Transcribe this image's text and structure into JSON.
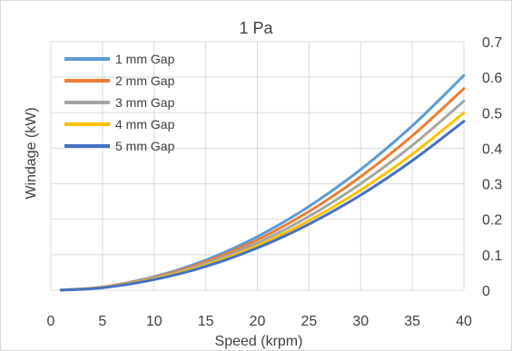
{
  "chart_data": {
    "type": "line",
    "title": "1 Pa",
    "xlabel": "Speed (krpm)",
    "ylabel": "Windage (kW)",
    "xlim": [
      0,
      40
    ],
    "ylim": [
      0,
      0.7
    ],
    "x_ticks": [
      0,
      5,
      10,
      15,
      20,
      25,
      30,
      35,
      40
    ],
    "y_ticks": [
      0,
      0.1,
      0.2,
      0.3,
      0.4,
      0.5,
      0.6,
      0.7
    ],
    "y_axis_side": "right",
    "grid": true,
    "legend_position": "top-left",
    "x": [
      1,
      5,
      10,
      15,
      20,
      25,
      30,
      35,
      40
    ],
    "series": [
      {
        "name": "1 mm Gap",
        "color": "#5b9bd5",
        "values": [
          0.0004,
          0.009,
          0.038,
          0.085,
          0.151,
          0.236,
          0.34,
          0.463,
          0.605
        ]
      },
      {
        "name": "2 mm Gap",
        "color": "#ed7d31",
        "values": [
          0.0004,
          0.009,
          0.036,
          0.08,
          0.142,
          0.222,
          0.32,
          0.435,
          0.568
        ]
      },
      {
        "name": "3 mm Gap",
        "color": "#a5a5a5",
        "values": [
          0.0004,
          0.008,
          0.034,
          0.075,
          0.133,
          0.208,
          0.3,
          0.408,
          0.533
        ]
      },
      {
        "name": "4 mm Gap",
        "color": "#ffc000",
        "values": [
          0.0003,
          0.008,
          0.032,
          0.07,
          0.125,
          0.196,
          0.282,
          0.383,
          0.5
        ]
      },
      {
        "name": "5 mm Gap",
        "color": "#4472c4",
        "values": [
          0.0003,
          0.007,
          0.03,
          0.067,
          0.119,
          0.186,
          0.268,
          0.365,
          0.476
        ]
      }
    ],
    "x_tick_labels": [
      "0",
      "5",
      "10",
      "15",
      "20",
      "25",
      "30",
      "35",
      "40"
    ],
    "y_tick_labels": [
      "0",
      "0.1",
      "0.2",
      "0.3",
      "0.4",
      "0.5",
      "0.6",
      "0.7"
    ]
  }
}
